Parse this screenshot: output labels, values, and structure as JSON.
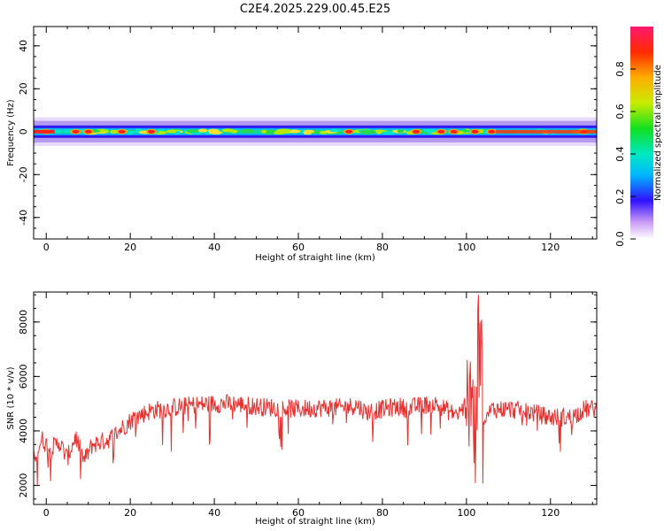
{
  "title": "C2E4.2025.229.00.45.E25",
  "chart_data": [
    {
      "type": "heatmap",
      "xlabel": "Height of straight line (km)",
      "ylabel": "Frequency (Hz)",
      "xlim": [
        -3,
        131
      ],
      "ylim": [
        -50,
        49
      ],
      "xticks": [
        0,
        20,
        40,
        60,
        80,
        100,
        120
      ],
      "yticks": [
        -40,
        -20,
        0,
        20,
        40
      ],
      "band_center_hz": 0,
      "band_width_hz": [
        -5,
        5
      ],
      "colorbar": {
        "label": "Normalized spectral amplitude",
        "range": [
          0,
          1
        ],
        "ticks": [
          "0.0",
          "0.2",
          "0.4",
          "0.6",
          "0.8"
        ]
      },
      "hot_spots_km": [
        0,
        7,
        10,
        18,
        25,
        72,
        88,
        94,
        97,
        102,
        106,
        128
      ]
    },
    {
      "type": "line",
      "xlabel": "Height of straight line (km)",
      "ylabel": "SNR (10 * v/v)",
      "xlim": [
        -3,
        131
      ],
      "ylim": [
        1300,
        9100
      ],
      "xticks": [
        0,
        20,
        40,
        60,
        80,
        100,
        120
      ],
      "yticks": [
        2000,
        4000,
        6000,
        8000
      ],
      "color": "#e8302f",
      "series": [
        {
          "x": [
            -3,
            -1,
            1,
            3,
            5,
            7,
            9,
            11,
            13,
            15,
            18,
            21,
            25,
            30,
            35,
            40,
            45,
            50,
            55,
            60,
            65,
            70,
            72,
            74,
            76,
            78,
            80,
            84,
            86,
            88,
            90,
            92,
            94,
            96,
            98,
            100,
            101,
            102,
            103,
            104,
            106,
            110,
            115,
            120,
            125,
            128,
            131
          ],
          "values": [
            3000,
            3700,
            3300,
            3600,
            3000,
            3800,
            2900,
            3500,
            3600,
            3700,
            4100,
            4500,
            4750,
            4850,
            4950,
            5000,
            5000,
            4900,
            4850,
            4800,
            4850,
            4850,
            4900,
            4950,
            4700,
            4750,
            4800,
            4900,
            4800,
            4900,
            4950,
            5000,
            4900,
            4700,
            4600,
            5000,
            6500,
            3000,
            7500,
            4200,
            4800,
            4800,
            4700,
            4500,
            4500,
            4800,
            4800
          ]
        }
      ]
    }
  ]
}
